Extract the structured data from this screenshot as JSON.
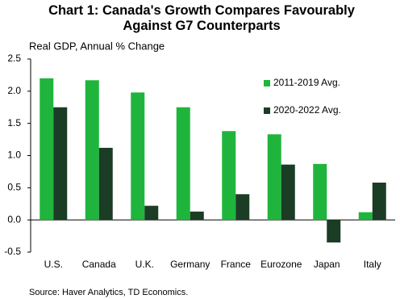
{
  "chart_data": {
    "type": "bar",
    "title": "Chart 1: Canada's Growth Compares Favourably Against G7 Counterparts",
    "y_label": "Real GDP, Annual % Change",
    "source": "Source: Haver Analytics, TD Economics.",
    "categories": [
      "U.S.",
      "Canada",
      "U.K.",
      "Germany",
      "France",
      "Eurozone",
      "Japan",
      "Italy"
    ],
    "series": [
      {
        "name": "2011-2019 Avg.",
        "color": "#1fb53c",
        "values": [
          2.2,
          2.17,
          1.98,
          1.75,
          1.38,
          1.33,
          0.87,
          0.12
        ]
      },
      {
        "name": "2020-2022 Avg.",
        "color": "#1b3c25",
        "values": [
          1.75,
          1.12,
          0.22,
          0.13,
          0.4,
          0.86,
          -0.35,
          0.58
        ]
      }
    ],
    "ylim": [
      -0.5,
      2.5
    ],
    "yticks": [
      -0.5,
      {
        "value": 0,
        "label": "0.0"
      },
      0.5,
      {
        "value": 1,
        "label": "1.0"
      },
      1.5,
      {
        "value": 2,
        "label": "2.0"
      },
      2.5
    ],
    "grid": false,
    "legend": "right"
  }
}
